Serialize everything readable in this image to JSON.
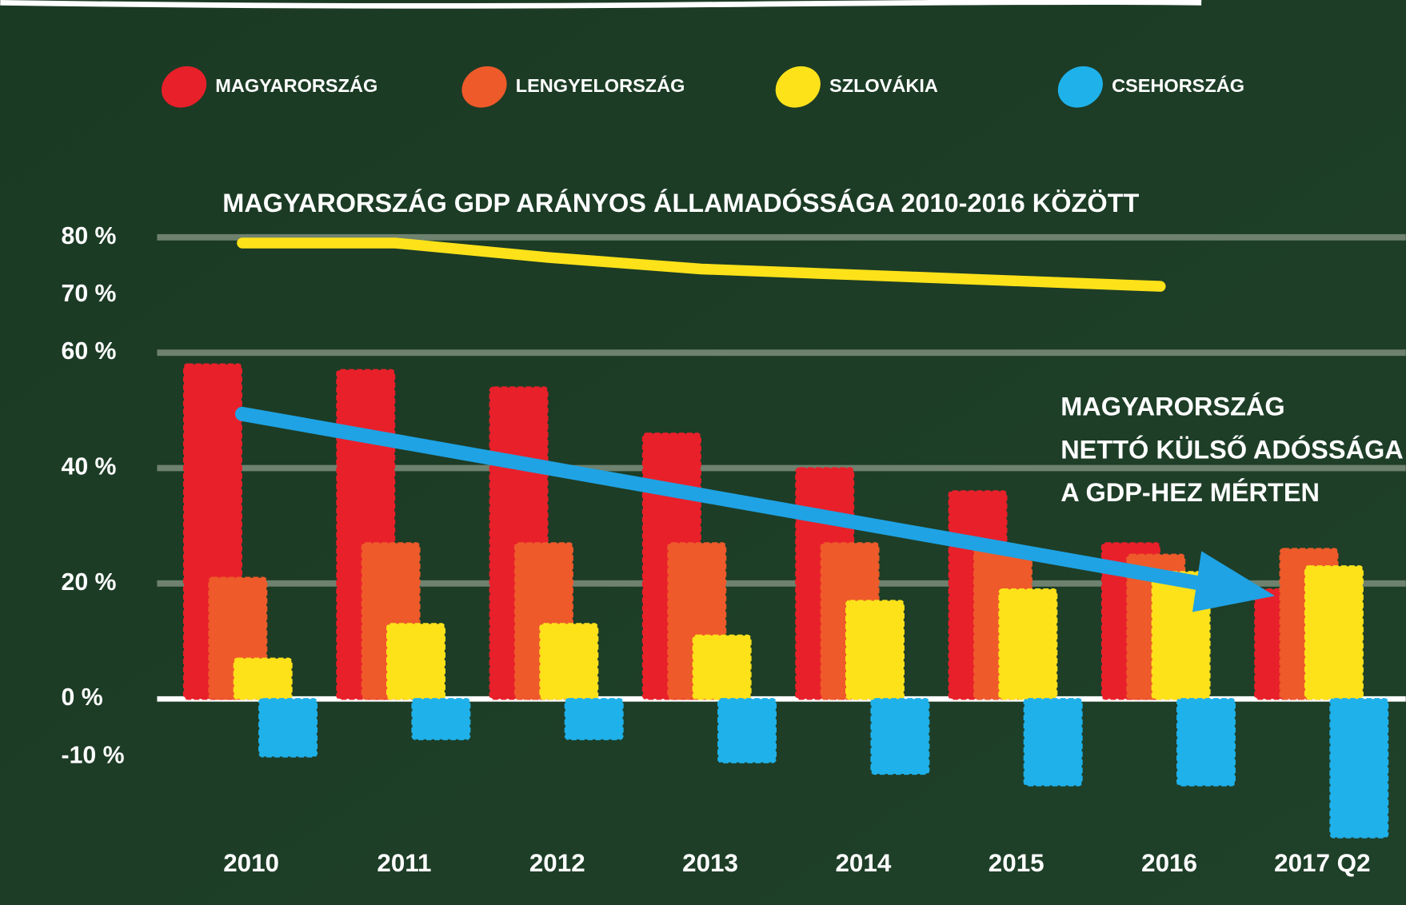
{
  "chart_data": {
    "type": "bar",
    "categories": [
      "2010",
      "2011",
      "2012",
      "2013",
      "2014",
      "2015",
      "2016",
      "2017 Q2"
    ],
    "series": [
      {
        "name": "MAGYARORSZÁG",
        "color": "#e8202a",
        "values": [
          58,
          57,
          54,
          46,
          40,
          36,
          27,
          19
        ]
      },
      {
        "name": "LENGYELORSZÁG",
        "color": "#ee5a2a",
        "values": [
          21,
          27,
          27,
          27,
          27,
          26,
          25,
          26
        ]
      },
      {
        "name": "SZLOVÁKIA",
        "color": "#fde21a",
        "values": [
          7,
          13,
          13,
          11,
          17,
          19,
          22,
          23
        ]
      },
      {
        "name": "CSEHORSZÁG",
        "color": "#1fb1ea",
        "values": [
          -10,
          -7,
          -7,
          -11,
          -13,
          -15,
          -15,
          -24
        ]
      }
    ],
    "line_series": {
      "type": "line",
      "name": "MAGYARORSZÁG GDP ARÁNYOS ÁLLAMADÓSSÁGA 2010-2016 KÖZÖTT",
      "color": "#fde21a",
      "values": [
        79,
        79,
        76.5,
        74.5,
        73.5,
        72.5,
        71.5,
        null
      ]
    },
    "annotation": [
      "MAGYARORSZÁG",
      "NETTÓ KÜLSŐ ADÓSSÁGA",
      "A GDP-HEZ MÉRTEN"
    ],
    "ylim": [
      -25,
      85
    ],
    "yticks": [
      {
        "value": 80,
        "label": "80 %"
      },
      {
        "value": 70,
        "label": "70 %"
      },
      {
        "value": 60,
        "label": "60 %"
      },
      {
        "value": 40,
        "label": "40 %"
      },
      {
        "value": 20,
        "label": "20 %"
      },
      {
        "value": 0,
        "label": "0 %"
      },
      {
        "value": -10,
        "label": "-10 %"
      }
    ],
    "grid_values": [
      80,
      60,
      40,
      20,
      0
    ],
    "legend": "top"
  }
}
